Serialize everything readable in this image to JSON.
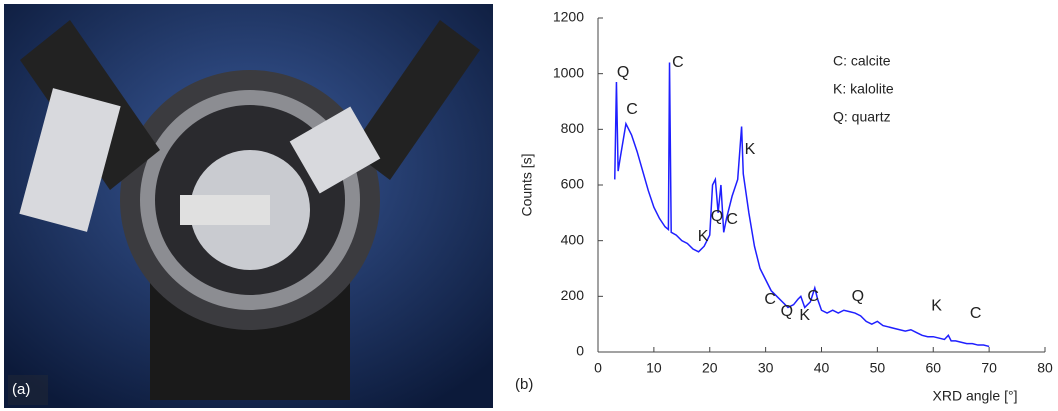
{
  "panel_a_label": "(a)",
  "chart_data": {
    "type": "line",
    "panel_label": "(b)",
    "ylabel": "Counts [s]",
    "xlabel": "XRD angle [°]",
    "xlim": [
      0,
      80
    ],
    "xticks": [
      0,
      10,
      20,
      30,
      40,
      50,
      60,
      70,
      80
    ],
    "ylim": [
      0,
      1200
    ],
    "yticks": [
      0,
      200,
      400,
      600,
      800,
      1000,
      1200
    ],
    "color": "#1f1fff",
    "x": [
      3,
      3.3,
      3.6,
      4,
      5,
      6,
      7,
      8,
      9,
      10,
      11,
      12,
      12.6,
      12.8,
      13.1,
      14,
      15,
      16,
      17,
      18,
      19,
      20,
      20.5,
      21,
      21.5,
      22,
      22.5,
      23,
      24,
      25,
      25.7,
      26,
      27,
      28,
      29,
      30,
      31,
      32,
      33,
      34,
      35,
      35.8,
      36.3,
      37,
      38,
      38.8,
      39.3,
      40,
      41,
      42,
      43,
      44,
      45,
      46,
      47,
      48,
      49,
      50,
      51,
      52,
      53,
      54,
      55,
      56,
      57,
      58,
      59,
      60,
      61,
      62,
      62.7,
      63.2,
      64,
      65,
      66,
      67,
      68,
      69,
      70
    ],
    "values": [
      620,
      970,
      650,
      700,
      820,
      780,
      720,
      650,
      580,
      520,
      480,
      450,
      440,
      1040,
      430,
      420,
      400,
      390,
      370,
      360,
      380,
      420,
      600,
      620,
      500,
      600,
      430,
      480,
      560,
      620,
      810,
      640,
      500,
      380,
      300,
      260,
      220,
      200,
      180,
      160,
      170,
      190,
      200,
      160,
      180,
      230,
      190,
      150,
      140,
      150,
      140,
      150,
      145,
      140,
      130,
      110,
      100,
      110,
      95,
      90,
      85,
      80,
      75,
      80,
      70,
      60,
      55,
      55,
      50,
      45,
      60,
      40,
      40,
      35,
      30,
      30,
      25,
      25,
      20
    ],
    "annotations": [
      {
        "text": "Q",
        "x": 4.5,
        "y": 1004
      },
      {
        "text": "C",
        "x": 14.3,
        "y": 1040
      },
      {
        "text": "C",
        "x": 6.1,
        "y": 870
      },
      {
        "text": "K",
        "x": 18.8,
        "y": 414
      },
      {
        "text": "Q",
        "x": 21.3,
        "y": 486
      },
      {
        "text": "C",
        "x": 24,
        "y": 475
      },
      {
        "text": "K",
        "x": 27.2,
        "y": 727
      },
      {
        "text": "C",
        "x": 30.8,
        "y": 187
      },
      {
        "text": "Q",
        "x": 33.8,
        "y": 144
      },
      {
        "text": "K",
        "x": 37,
        "y": 130
      },
      {
        "text": "C",
        "x": 38.5,
        "y": 198
      },
      {
        "text": "Q",
        "x": 46.5,
        "y": 198
      },
      {
        "text": "K",
        "x": 60.6,
        "y": 165
      },
      {
        "text": "C",
        "x": 67.6,
        "y": 137
      }
    ],
    "legend_text": [
      "C: calcite",
      "K: kalolite",
      "Q: quartz"
    ]
  }
}
